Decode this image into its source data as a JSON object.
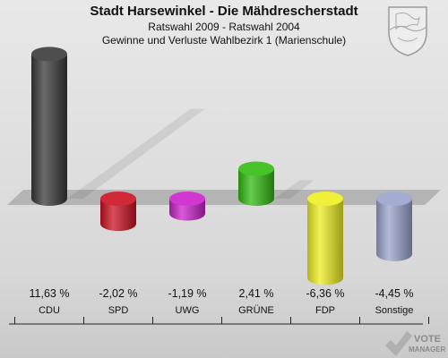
{
  "header": {
    "title": "Stadt Harsewinkel - Die Mähdrescherstadt",
    "subtitle1": "Ratswahl 2009 - Ratswahl 2004",
    "subtitle2": "Gewinne und Verluste Wahlbezirk 1 (Marienschule)"
  },
  "chart_data": {
    "type": "bar",
    "categories": [
      "CDU",
      "SPD",
      "UWG",
      "GRÜNE",
      "FDP",
      "Sonstige"
    ],
    "values": [
      11.63,
      -2.02,
      -1.19,
      2.41,
      -6.36,
      -4.45
    ],
    "value_labels": [
      "11,63 %",
      "-2,02 %",
      "-1,19 %",
      "2,41 %",
      "-6,36 %",
      "-4,45 %"
    ],
    "colors": [
      "#3a3a3a",
      "#cc1122",
      "#cc22cc",
      "#33bb11",
      "#eeee22",
      "#99a4cc"
    ],
    "ylim": [
      -6.36,
      11.63
    ]
  },
  "logo": {
    "line1": "VOTE",
    "line2": "MANAGER"
  }
}
